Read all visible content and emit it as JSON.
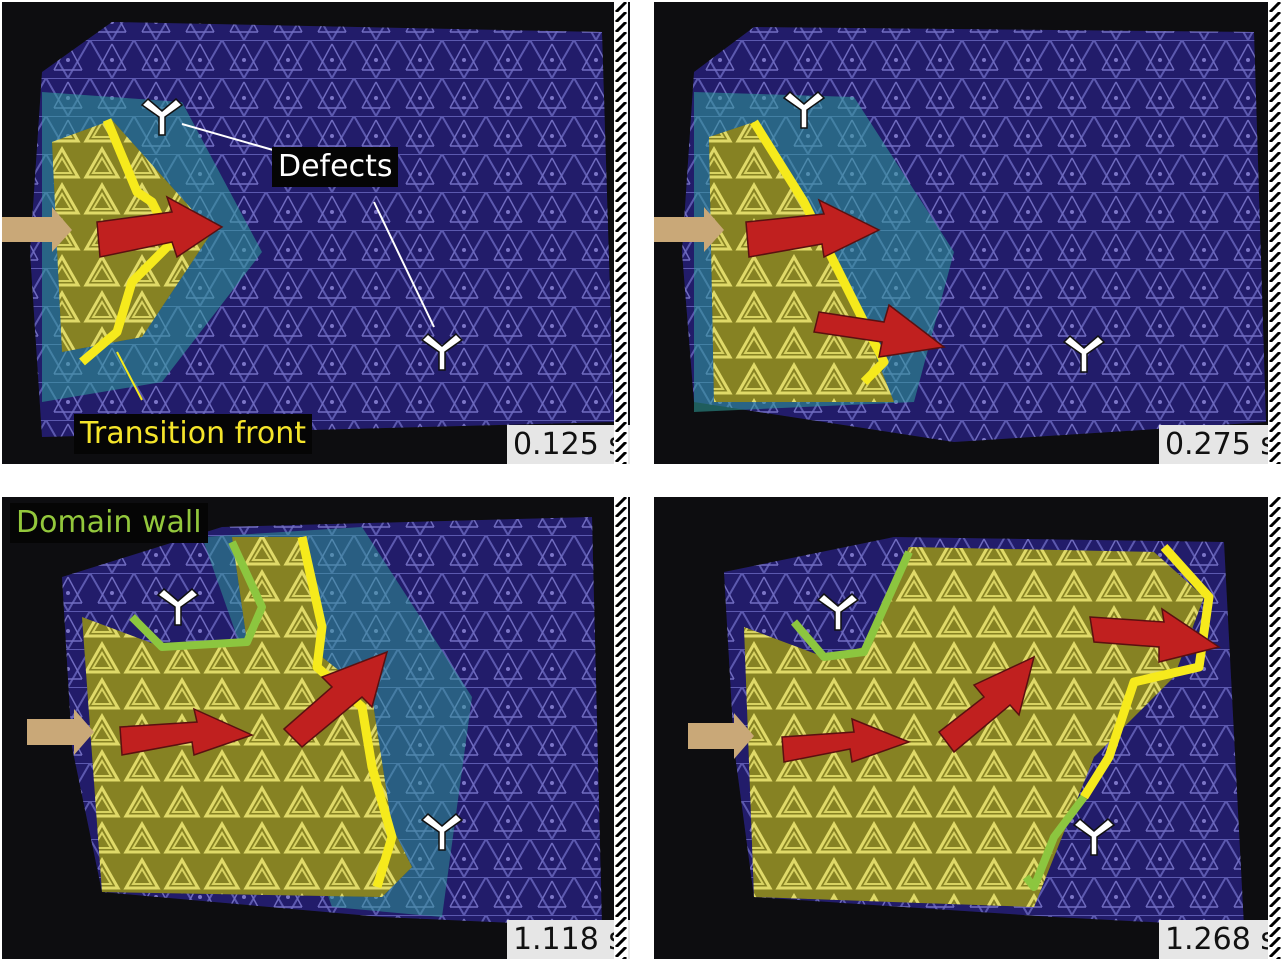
{
  "panels": [
    {
      "time": "0.125 s"
    },
    {
      "time": "0.275 s"
    },
    {
      "time": "1.118 s"
    },
    {
      "time": "1.268 s"
    }
  ],
  "annotations": {
    "defects": "Defects",
    "transition_front": "Transition front",
    "domain_wall": "Domain wall"
  },
  "colors": {
    "purple_phase": "#3a2a9a",
    "teal_phase": "#2f8f8a",
    "yellow_phase": "#d8d230",
    "front": "#f6ea1c",
    "wall": "#8cc63f",
    "arrow": "#c0201f",
    "push_arrow": "#c9a878"
  }
}
